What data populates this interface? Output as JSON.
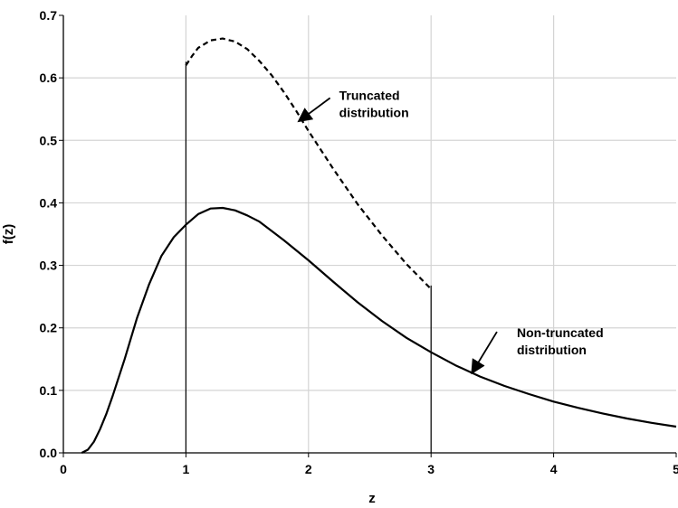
{
  "chart_data": {
    "type": "line",
    "xlabel": "z",
    "ylabel": "f(z)",
    "xlim": [
      0,
      5
    ],
    "ylim": [
      0,
      0.7
    ],
    "x_ticks": [
      "0",
      "1",
      "2",
      "3",
      "4",
      "5"
    ],
    "y_ticks": [
      "0.0",
      "0.1",
      "0.2",
      "0.3",
      "0.4",
      "0.5",
      "0.6",
      "0.7"
    ],
    "grid": true,
    "truncation_bounds": [
      1,
      3
    ],
    "series": [
      {
        "style": "solid",
        "color": "#000000",
        "x": [
          0.15,
          0.2,
          0.25,
          0.3,
          0.35,
          0.4,
          0.5,
          0.6,
          0.7,
          0.8,
          0.9,
          1.0,
          1.1,
          1.2,
          1.3,
          1.4,
          1.5,
          1.6,
          1.8,
          2.0,
          2.2,
          2.4,
          2.6,
          2.8,
          3.0,
          3.2,
          3.4,
          3.6,
          3.8,
          4.0,
          4.2,
          4.4,
          4.6,
          4.8,
          5.0
        ],
        "y": [
          0.0,
          0.005,
          0.018,
          0.038,
          0.062,
          0.09,
          0.15,
          0.215,
          0.27,
          0.315,
          0.345,
          0.365,
          0.382,
          0.391,
          0.392,
          0.388,
          0.38,
          0.37,
          0.34,
          0.308,
          0.274,
          0.241,
          0.211,
          0.184,
          0.161,
          0.14,
          0.122,
          0.107,
          0.094,
          0.082,
          0.072,
          0.063,
          0.055,
          0.048,
          0.042
        ]
      },
      {
        "style": "dashed",
        "color": "#000000",
        "x": [
          1.0,
          1.05,
          1.1,
          1.2,
          1.3,
          1.4,
          1.5,
          1.6,
          1.7,
          1.8,
          1.9,
          2.0,
          2.2,
          2.4,
          2.6,
          2.8,
          3.0
        ],
        "y": [
          0.62,
          0.635,
          0.648,
          0.66,
          0.663,
          0.658,
          0.646,
          0.627,
          0.604,
          0.577,
          0.547,
          0.515,
          0.455,
          0.398,
          0.348,
          0.302,
          0.262
        ]
      }
    ],
    "annotations": [
      {
        "line1": "Truncated",
        "line2": "distribution",
        "x": 2.25,
        "y": 0.565,
        "arrow_to": [
          1.93,
          0.532
        ]
      },
      {
        "line1": "Non-truncated",
        "line2": "distribution",
        "x": 3.7,
        "y": 0.185,
        "arrow_to": [
          3.34,
          0.13
        ]
      }
    ]
  }
}
